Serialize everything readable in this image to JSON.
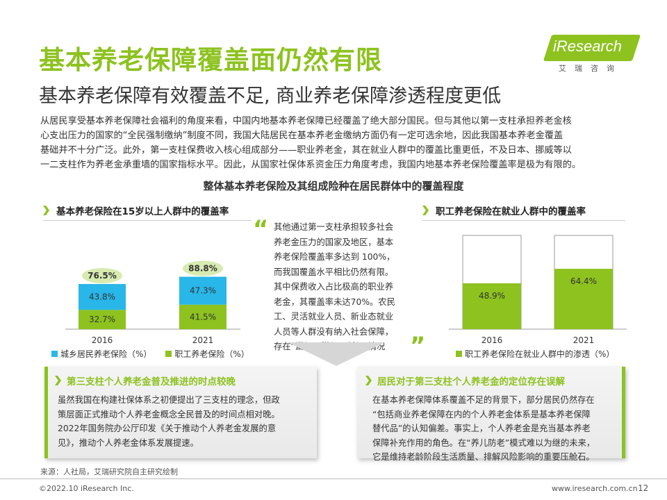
{
  "header": {
    "title": "基本养老保障覆盖面仍然有限",
    "subtitle": "基本养老保障有效覆盖不足, 商业养老保障渗透程度更低"
  },
  "logo": {
    "brand": "iResearch",
    "cn": "艾瑞咨询"
  },
  "intro": {
    "lines": [
      "从居民享受基本养老保障社会福利的角度来看，中国内地基本养老保障已经覆盖了绝大部分国民。但与其他以第一支柱承担养老金核",
      "心支出压力的国家的“全民强制缴纳”制度不同，我国大陆居民在基本养老金缴纳方面仍有一定可选余地，因此我国基本养老金覆盖",
      "基础并不十分广泛。此外，第一支柱保费收入核心组成部分——职业养老金，其在就业人群中的覆盖比重更低，不及日本、挪威等以",
      "一二支柱作为养老金承重墙的国家指标水平。因此，从国家社保体系资金压力角度考虑，我国内地基本养老保险覆盖率是极为有限的。"
    ]
  },
  "chart_section_title": "整体基本养老保险及其组成险种在居民群体中的覆盖程度",
  "left_section": {
    "heading": "基本养老保险在15岁以上人群中的覆盖率"
  },
  "right_section": {
    "heading": "职工养老保险在就业人群中的覆盖率"
  },
  "quote": {
    "open_mark": "“",
    "close_mark": "”",
    "lines": [
      "其他通过第一支柱承担较多社会",
      "养老金压力的国家及地区，基本",
      "养老保险覆盖率多达到 100%，",
      "而我国覆盖水平相比仍然有限。",
      "其中保费收入占比极高的职业养",
      "老金，其覆盖率未达70%。农民",
      "工、灵活就业人员、新业态就业",
      "人员等人群没有纳入社会保障，",
      "存在“漏保、脱保、断保”情况"
    ]
  },
  "chart_data": [
    {
      "type": "bar",
      "stacked": true,
      "categories": [
        "2016",
        "2021"
      ],
      "series": [
        {
          "name": "职工养老保险（%）",
          "values": [
            32.7,
            41.5
          ],
          "labels": [
            "32.7%",
            "41.5%"
          ],
          "color": "#8dc21f"
        },
        {
          "name": "城乡居民养老保险（%）",
          "values": [
            43.8,
            47.3
          ],
          "labels": [
            "43.8%",
            "47.3%"
          ],
          "color": "#29b6e8"
        }
      ],
      "totals": [
        76.5,
        88.8
      ],
      "total_labels": [
        "76.5%",
        "88.8%"
      ],
      "total_bubble_color": "#d7ebb0",
      "legend_order": [
        "城乡居民养老保险（%）",
        "职工养老保险（%）"
      ],
      "legend_position": "bottom-left",
      "ylim": [
        0,
        100
      ]
    },
    {
      "type": "bar",
      "stacked": false,
      "categories": [
        "2016",
        "2021"
      ],
      "series": [
        {
          "name": "职工养老保险在就业人群中的渗透（%）",
          "values": [
            48.9,
            64.4
          ],
          "labels": [
            "48.9%",
            "64.4%"
          ],
          "color": "#8dc21f"
        }
      ],
      "frame": 100,
      "legend_position": "bottom-left",
      "ylim": [
        0,
        100
      ]
    }
  ],
  "card_left": {
    "title": "第三支柱个人养老金普及推进的时点较晚",
    "lines": [
      "虽然我国在构建社保体系之初便提出了三支柱的理念，但政",
      "策层面正式推动个人养老金概念全民普及的时间点相对晚。",
      "2022年国务院办公厅印发《关于推动个人养老金发展的意",
      "见》，推动个人养老金体系发展提速。"
    ]
  },
  "card_right": {
    "title": "居民对于第三支柱个人养老金的定位存在误解",
    "lines": [
      "在基本养老保障体系覆盖不足的背景下，部分居民仍然存在",
      "“包括商业养老保障在内的个人养老金体系是基本养老保障",
      "替代品”的认知偏差。事实上，个人养老金是充当基本养老",
      "保障补充作用的角色。在“养儿防老”模式难以为继的未来，",
      "它是维持老龄阶段生活质量、排解风险影响的重要压舱石。"
    ]
  },
  "footer": {
    "source": "来源：人社局，艾瑞研究院自主研究绘制",
    "copyright": "©2022.10 iResearch Inc.",
    "website": "www.iresearch.com.cn",
    "page": "12"
  }
}
